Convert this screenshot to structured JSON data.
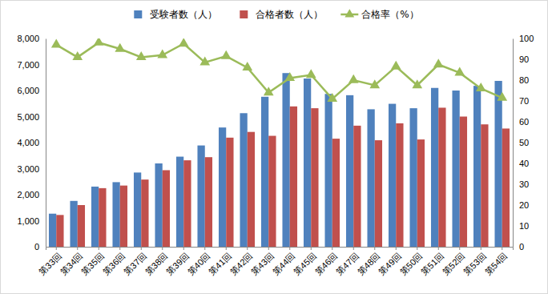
{
  "chart_data": {
    "type": "bar",
    "categories": [
      "第33回",
      "第34回",
      "第35回",
      "第36回",
      "第37回",
      "第38回",
      "第39回",
      "第40回",
      "第41回",
      "第42回",
      "第43回",
      "第44回",
      "第45回",
      "第46回",
      "第47回",
      "第48回",
      "第49回",
      "第50回",
      "第51回",
      "第52回",
      "第53回",
      "第54回"
    ],
    "series": [
      {
        "name": "受験者数（人）",
        "type": "bar",
        "color": "#4f81bd",
        "values": [
          1270,
          1760,
          2310,
          2480,
          2850,
          3200,
          3460,
          3890,
          4580,
          5130,
          5760,
          6670,
          6460,
          5870,
          5820,
          5280,
          5490,
          5320,
          6100,
          6000,
          6180,
          6370
        ]
      },
      {
        "name": "合格者数（人）",
        "type": "bar",
        "color": "#c0504d",
        "values": [
          1220,
          1600,
          2250,
          2350,
          2580,
          2940,
          3320,
          3440,
          4190,
          4410,
          4260,
          5390,
          5320,
          4150,
          4650,
          4090,
          4740,
          4120,
          5340,
          5000,
          4700,
          4540
        ]
      },
      {
        "name": "合格率（%）",
        "type": "line",
        "axis": "y2",
        "color": "#9bbb59",
        "marker": "triangle",
        "values": [
          97,
          91,
          98,
          95,
          91,
          92,
          97.5,
          88.5,
          91.5,
          86,
          74,
          81,
          82.5,
          71,
          80,
          77.5,
          86.5,
          77.5,
          87.5,
          83.5,
          76,
          71.5
        ]
      }
    ],
    "ylim": [
      0,
      8000
    ],
    "yticks": [
      0,
      {
        "value": 1000,
        "label": "1,000"
      },
      {
        "value": 2000,
        "label": "2,000"
      },
      {
        "value": 3000,
        "label": "3,000"
      },
      {
        "value": 4000,
        "label": "4,000"
      },
      {
        "value": 5000,
        "label": "5,000"
      },
      {
        "value": 6000,
        "label": "6,000"
      },
      {
        "value": 7000,
        "label": "7,000"
      },
      {
        "value": 8000,
        "label": "8,000"
      }
    ],
    "y2lim": [
      0,
      100
    ],
    "y2ticks": [
      0,
      10,
      20,
      30,
      40,
      50,
      60,
      70,
      80,
      90,
      100
    ],
    "legend": "top",
    "grid": false
  }
}
